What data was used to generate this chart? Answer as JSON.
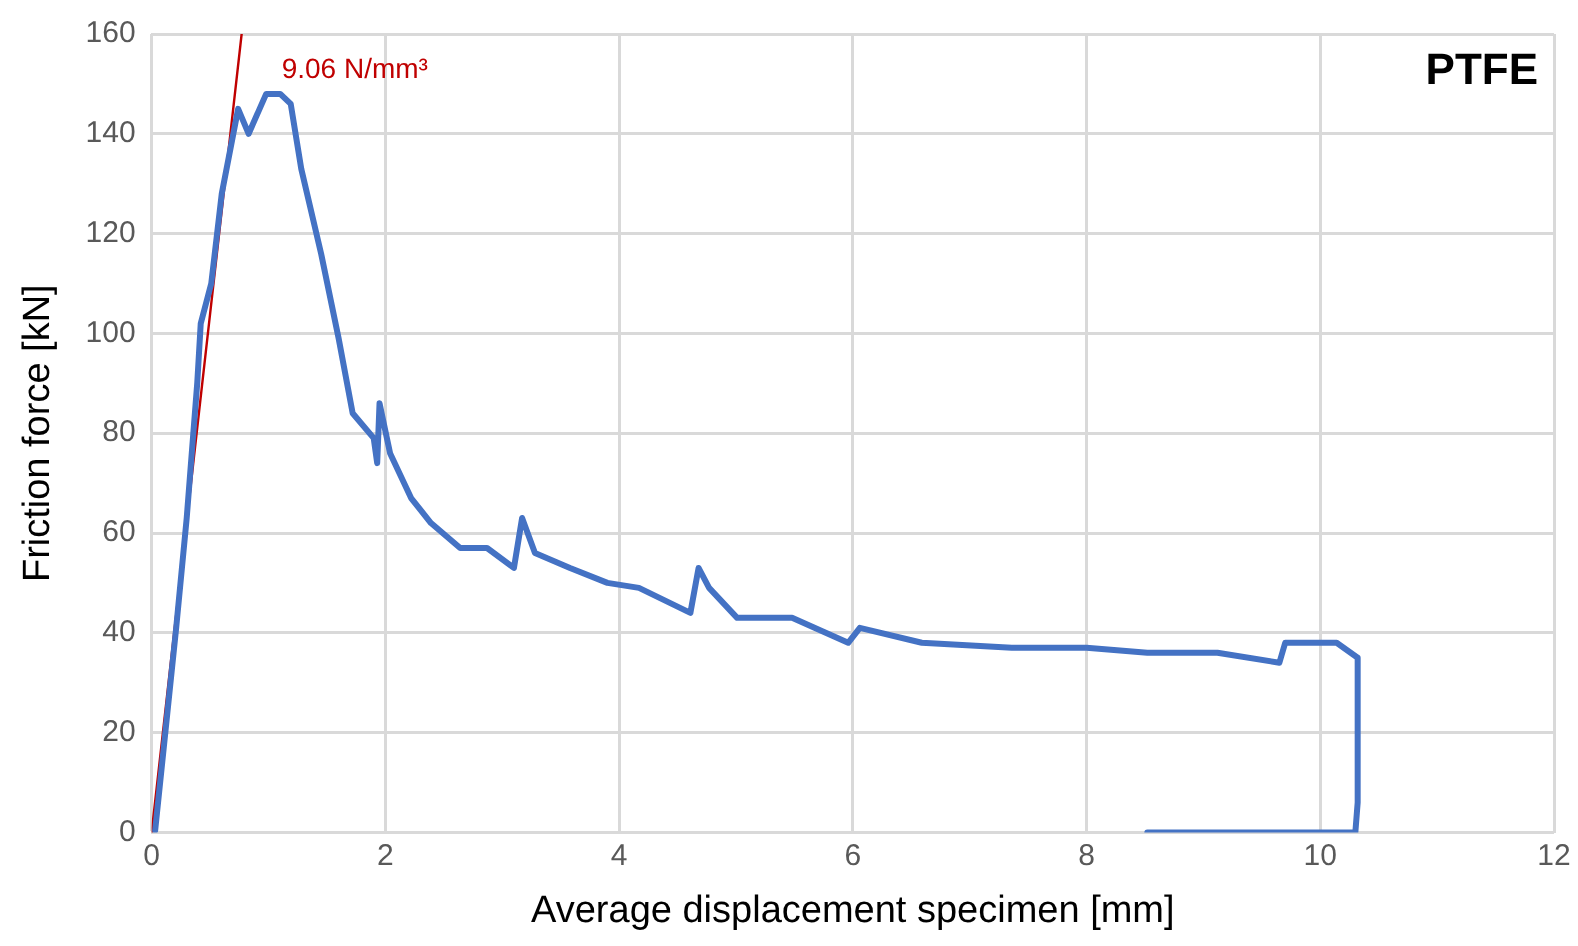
{
  "chart_data": {
    "type": "line",
    "xlabel": "Average displacement specimen [mm]",
    "ylabel": "Friction force [kN]",
    "annotations": [
      "PTFE"
    ],
    "xlim": [
      0,
      12
    ],
    "xticks": [
      0,
      2,
      4,
      6,
      8,
      10,
      12
    ],
    "ylim": [
      0,
      160
    ],
    "yticks": [
      0,
      20,
      40,
      60,
      80,
      100,
      120,
      140,
      160
    ],
    "grid": true,
    "legend": false,
    "marker": "none",
    "line_style": "solid",
    "series": [
      {
        "color": "#4472c4",
        "x": [
          0.03,
          0.21,
          0.3,
          0.39,
          0.42,
          0.51,
          0.6,
          0.74,
          0.83,
          0.98,
          1.1,
          1.19,
          1.28,
          1.45,
          1.6,
          1.72,
          1.9,
          1.93,
          1.95,
          2.04,
          2.22,
          2.39,
          2.64,
          2.87,
          3.1,
          3.17,
          3.28,
          3.58,
          3.9,
          4.17,
          4.61,
          4.68,
          4.77,
          5.01,
          5.48,
          5.96,
          6.06,
          6.59,
          7.36,
          8.0,
          8.52,
          9.12,
          9.65,
          9.7,
          10.14,
          10.32,
          10.32,
          10.3,
          8.52
        ],
        "values": [
          0.4,
          41,
          63,
          90,
          102,
          110,
          128,
          145,
          140,
          148,
          148,
          146,
          133,
          116,
          99,
          84,
          79,
          74,
          86,
          76,
          67,
          62,
          57,
          57,
          53,
          63,
          56,
          53,
          50,
          49,
          44,
          53,
          49,
          43,
          43,
          38,
          41,
          38,
          37,
          37,
          36,
          36,
          34,
          38,
          38,
          35,
          6,
          0,
          0
        ]
      },
      {
        "type": "line",
        "name": "9.06 N/mm³",
        "color": "#c00000",
        "x": [
          0,
          0.77
        ],
        "values": [
          0,
          160
        ]
      }
    ]
  }
}
